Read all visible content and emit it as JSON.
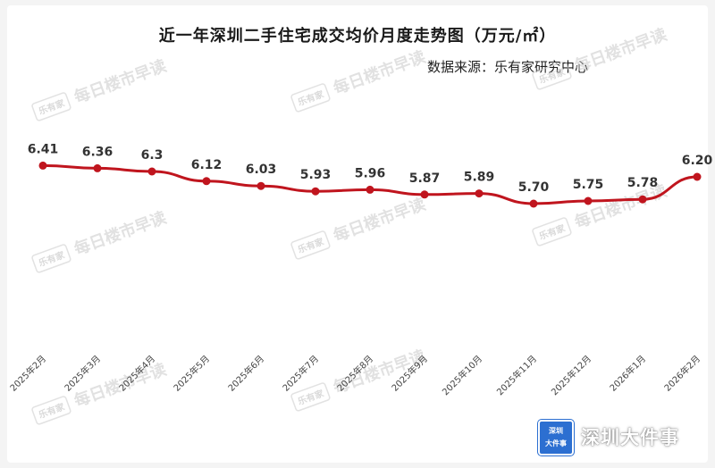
{
  "header": {
    "title": "近一年深圳二手住宅成交均价月度走势图（万元/㎡）",
    "source": "数据来源：乐有家研究中心"
  },
  "watermark": {
    "text": "每日楼市早读",
    "logo": "乐有家"
  },
  "branding": {
    "badge_line1": "深圳",
    "badge_line2": "大件事",
    "name": "深圳大件事"
  },
  "colors": {
    "line": "#c0151e",
    "marker": "#c0151e",
    "badge": "#2c6fd1"
  },
  "chart_data": {
    "type": "line",
    "title": "近一年深圳二手住宅成交均价月度走势图（万元/㎡）",
    "categories": [
      "2025年2月",
      "2025年3月",
      "2025年4月",
      "2025年5月",
      "2025年6月",
      "2025年7月",
      "2025年8月",
      "2025年9月",
      "2025年10月",
      "2025年11月",
      "2025年12月",
      "2026年1月",
      "2026年2月"
    ],
    "values": [
      6.41,
      6.36,
      6.3,
      6.12,
      6.03,
      5.93,
      5.96,
      5.87,
      5.89,
      5.7,
      5.75,
      5.78,
      6.2
    ],
    "value_labels": [
      "6.41",
      "6.36",
      "6.3",
      "6.12",
      "6.03",
      "5.93",
      "5.96",
      "5.87",
      "5.89",
      "5.70",
      "5.75",
      "5.78",
      "6.20"
    ],
    "series": [
      {
        "values": [
          6.41,
          6.36,
          6.3,
          6.12,
          6.03,
          5.93,
          5.96,
          5.87,
          5.89,
          5.7,
          5.75,
          5.78,
          6.2
        ]
      }
    ],
    "ylim": [
      3,
      8
    ],
    "grid": false,
    "legend": "none",
    "xlabel": "",
    "ylabel": ""
  }
}
